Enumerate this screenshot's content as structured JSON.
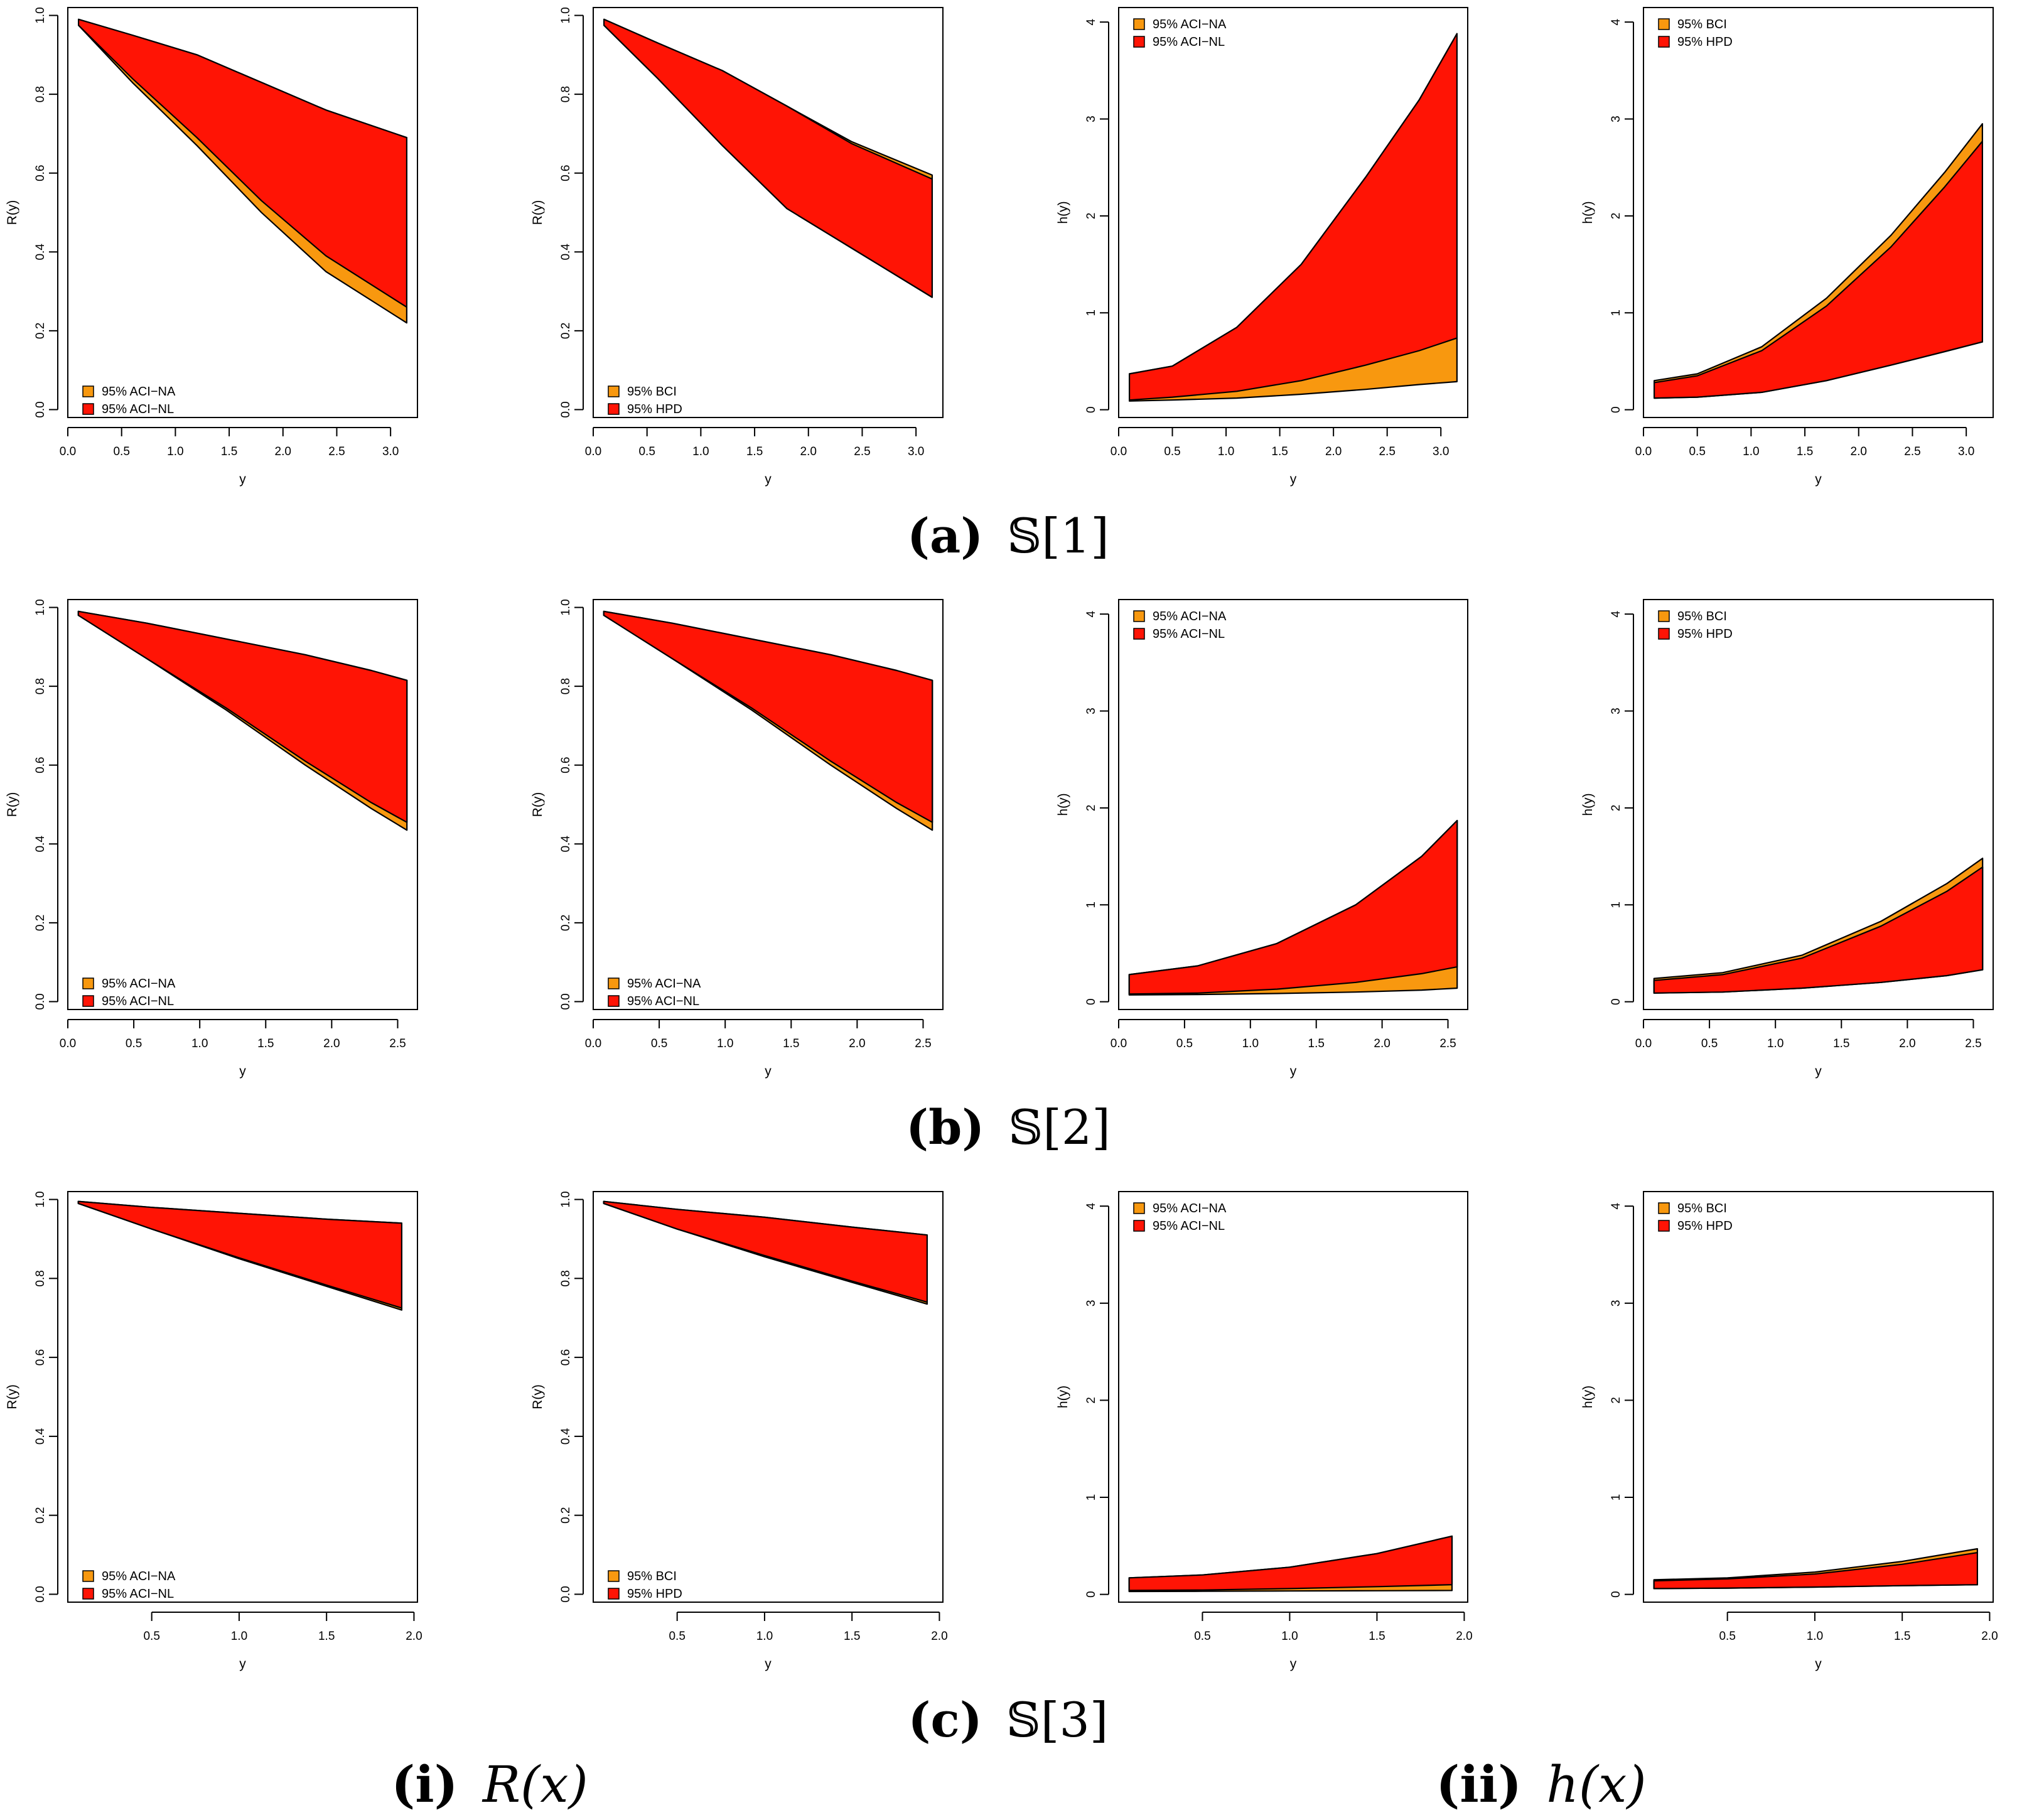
{
  "colors": {
    "orange": "#F8980F",
    "red": "#FF1405",
    "line": "#000000"
  },
  "row_captions": [
    {
      "letter": "(a)",
      "symbol": "𝕊[1]"
    },
    {
      "letter": "(b)",
      "symbol": "𝕊[2]"
    },
    {
      "letter": "(c)",
      "symbol": "𝕊[3]"
    }
  ],
  "column_captions": [
    {
      "letter": "(i)",
      "symbol": "R(x)"
    },
    {
      "letter": "(ii)",
      "symbol": "h(x)"
    }
  ],
  "chart_data": [
    {
      "id": "a1",
      "type": "area",
      "xlabel": "y",
      "ylabel": "R(y)",
      "xlim": [
        0,
        3.25
      ],
      "ylim": [
        -0.02,
        1.02
      ],
      "xticks": [
        0,
        0.5,
        1,
        1.5,
        2,
        2.5,
        3
      ],
      "yticks": [
        0,
        0.2,
        0.4,
        0.6,
        0.8,
        1
      ],
      "x": [
        0.1,
        0.6,
        1.2,
        1.8,
        2.4,
        3.15
      ],
      "legend": [
        "95% ACI−NA",
        "95% ACI−NL"
      ],
      "legend_position": "bottom-left",
      "series": [
        {
          "name": "95% ACI−NA",
          "upper": [
            0.99,
            0.95,
            0.9,
            0.83,
            0.76,
            0.69
          ],
          "lower": [
            0.975,
            0.83,
            0.67,
            0.5,
            0.35,
            0.22
          ]
        },
        {
          "name": "95% ACI−NL",
          "upper": [
            0.99,
            0.95,
            0.9,
            0.83,
            0.76,
            0.69
          ],
          "lower": [
            0.975,
            0.84,
            0.69,
            0.53,
            0.39,
            0.26
          ]
        }
      ]
    },
    {
      "id": "a2",
      "type": "area",
      "xlabel": "y",
      "ylabel": "R(y)",
      "xlim": [
        0,
        3.25
      ],
      "ylim": [
        -0.02,
        1.02
      ],
      "xticks": [
        0,
        0.5,
        1,
        1.5,
        2,
        2.5,
        3
      ],
      "yticks": [
        0,
        0.2,
        0.4,
        0.6,
        0.8,
        1
      ],
      "x": [
        0.1,
        0.6,
        1.2,
        1.8,
        2.4,
        3.15
      ],
      "legend": [
        "95% BCI",
        "95% HPD"
      ],
      "legend_position": "bottom-left",
      "series": [
        {
          "name": "95% BCI",
          "upper": [
            0.99,
            0.93,
            0.86,
            0.77,
            0.68,
            0.595
          ],
          "lower": [
            0.975,
            0.84,
            0.67,
            0.51,
            0.41,
            0.285
          ]
        },
        {
          "name": "95% HPD",
          "upper": [
            0.99,
            0.93,
            0.86,
            0.77,
            0.675,
            0.585
          ],
          "lower": [
            0.975,
            0.84,
            0.67,
            0.51,
            0.41,
            0.285
          ]
        }
      ]
    },
    {
      "id": "a3",
      "type": "area",
      "xlabel": "y",
      "ylabel": "h(y)",
      "xlim": [
        0,
        3.25
      ],
      "ylim": [
        -0.08,
        4.15
      ],
      "xticks": [
        0,
        0.5,
        1,
        1.5,
        2,
        2.5,
        3
      ],
      "yticks": [
        0,
        1,
        2,
        3,
        4
      ],
      "x": [
        0.1,
        0.5,
        1.1,
        1.7,
        2.3,
        2.8,
        3.15
      ],
      "legend": [
        "95% ACI−NA",
        "95% ACI−NL"
      ],
      "legend_position": "top-left",
      "series": [
        {
          "name": "95% ACI−NA",
          "upper": [
            0.37,
            0.45,
            0.85,
            1.5,
            2.4,
            3.2,
            3.88
          ],
          "lower": [
            0.09,
            0.1,
            0.12,
            0.16,
            0.21,
            0.26,
            0.29
          ]
        },
        {
          "name": "95% ACI−NL",
          "upper": [
            0.37,
            0.45,
            0.85,
            1.5,
            2.4,
            3.2,
            3.88
          ],
          "lower": [
            0.1,
            0.13,
            0.19,
            0.3,
            0.46,
            0.61,
            0.74
          ]
        }
      ]
    },
    {
      "id": "a4",
      "type": "area",
      "xlabel": "y",
      "ylabel": "h(y)",
      "xlim": [
        0,
        3.25
      ],
      "ylim": [
        -0.08,
        4.15
      ],
      "xticks": [
        0,
        0.5,
        1,
        1.5,
        2,
        2.5,
        3
      ],
      "yticks": [
        0,
        1,
        2,
        3,
        4
      ],
      "x": [
        0.1,
        0.5,
        1.1,
        1.7,
        2.3,
        2.8,
        3.15
      ],
      "legend": [
        "95% BCI",
        "95% HPD"
      ],
      "legend_position": "top-left",
      "series": [
        {
          "name": "95% BCI",
          "upper": [
            0.3,
            0.37,
            0.65,
            1.15,
            1.8,
            2.45,
            2.95
          ],
          "lower": [
            0.12,
            0.13,
            0.18,
            0.3,
            0.46,
            0.6,
            0.7
          ]
        },
        {
          "name": "95% HPD",
          "upper": [
            0.28,
            0.35,
            0.61,
            1.07,
            1.68,
            2.3,
            2.77
          ],
          "lower": [
            0.12,
            0.13,
            0.18,
            0.3,
            0.46,
            0.6,
            0.7
          ]
        }
      ]
    },
    {
      "id": "b1",
      "type": "area",
      "xlabel": "y",
      "ylabel": "R(y)",
      "xlim": [
        0,
        2.65
      ],
      "ylim": [
        -0.02,
        1.02
      ],
      "xticks": [
        0,
        0.5,
        1,
        1.5,
        2,
        2.5
      ],
      "yticks": [
        0,
        0.2,
        0.4,
        0.6,
        0.8,
        1
      ],
      "x": [
        0.08,
        0.6,
        1.2,
        1.8,
        2.3,
        2.57
      ],
      "legend": [
        "95% ACI−NA",
        "95% ACI−NL"
      ],
      "legend_position": "bottom-left",
      "series": [
        {
          "name": "95% ACI−NA",
          "upper": [
            0.99,
            0.96,
            0.92,
            0.88,
            0.84,
            0.815
          ],
          "lower": [
            0.98,
            0.87,
            0.74,
            0.6,
            0.49,
            0.435
          ]
        },
        {
          "name": "95% ACI−NL",
          "upper": [
            0.99,
            0.96,
            0.92,
            0.88,
            0.84,
            0.815
          ],
          "lower": [
            0.98,
            0.87,
            0.745,
            0.61,
            0.505,
            0.455
          ]
        }
      ]
    },
    {
      "id": "b2",
      "type": "area",
      "xlabel": "y",
      "ylabel": "R(y)",
      "xlim": [
        0,
        2.65
      ],
      "ylim": [
        -0.02,
        1.02
      ],
      "xticks": [
        0,
        0.5,
        1,
        1.5,
        2,
        2.5
      ],
      "yticks": [
        0,
        0.2,
        0.4,
        0.6,
        0.8,
        1
      ],
      "x": [
        0.08,
        0.6,
        1.2,
        1.8,
        2.3,
        2.57
      ],
      "legend": [
        "95% ACI−NA",
        "95% ACI−NL"
      ],
      "legend_position": "bottom-left",
      "series": [
        {
          "name": "95% ACI−NA",
          "upper": [
            0.99,
            0.96,
            0.92,
            0.88,
            0.84,
            0.815
          ],
          "lower": [
            0.98,
            0.87,
            0.74,
            0.6,
            0.49,
            0.435
          ]
        },
        {
          "name": "95% ACI−NL",
          "upper": [
            0.99,
            0.96,
            0.92,
            0.88,
            0.84,
            0.815
          ],
          "lower": [
            0.98,
            0.87,
            0.745,
            0.61,
            0.505,
            0.455
          ]
        }
      ]
    },
    {
      "id": "b3",
      "type": "area",
      "xlabel": "y",
      "ylabel": "h(y)",
      "xlim": [
        0,
        2.65
      ],
      "ylim": [
        -0.08,
        4.15
      ],
      "xticks": [
        0,
        0.5,
        1,
        1.5,
        2,
        2.5
      ],
      "yticks": [
        0,
        1,
        2,
        3,
        4
      ],
      "x": [
        0.08,
        0.6,
        1.2,
        1.8,
        2.3,
        2.57
      ],
      "legend": [
        "95% ACI−NA",
        "95% ACI−NL"
      ],
      "legend_position": "top-left",
      "series": [
        {
          "name": "95% ACI−NA",
          "upper": [
            0.28,
            0.37,
            0.6,
            1.0,
            1.5,
            1.87
          ],
          "lower": [
            0.07,
            0.075,
            0.085,
            0.1,
            0.12,
            0.14
          ]
        },
        {
          "name": "95% ACI−NL",
          "upper": [
            0.28,
            0.37,
            0.6,
            1.0,
            1.5,
            1.87
          ],
          "lower": [
            0.08,
            0.09,
            0.13,
            0.2,
            0.29,
            0.36
          ]
        }
      ]
    },
    {
      "id": "b4",
      "type": "area",
      "xlabel": "y",
      "ylabel": "h(y)",
      "xlim": [
        0,
        2.65
      ],
      "ylim": [
        -0.08,
        4.15
      ],
      "xticks": [
        0,
        0.5,
        1,
        1.5,
        2,
        2.5
      ],
      "yticks": [
        0,
        1,
        2,
        3,
        4
      ],
      "x": [
        0.08,
        0.6,
        1.2,
        1.8,
        2.3,
        2.57
      ],
      "legend": [
        "95% BCI",
        "95% HPD"
      ],
      "legend_position": "top-left",
      "series": [
        {
          "name": "95% BCI",
          "upper": [
            0.24,
            0.3,
            0.48,
            0.83,
            1.22,
            1.48
          ],
          "lower": [
            0.09,
            0.1,
            0.14,
            0.2,
            0.27,
            0.33
          ]
        },
        {
          "name": "95% HPD",
          "upper": [
            0.22,
            0.28,
            0.45,
            0.78,
            1.14,
            1.39
          ],
          "lower": [
            0.09,
            0.1,
            0.14,
            0.2,
            0.27,
            0.33
          ]
        }
      ]
    },
    {
      "id": "c1",
      "type": "area",
      "xlabel": "y",
      "ylabel": "R(y)",
      "xlim": [
        0.02,
        2.02
      ],
      "ylim": [
        -0.02,
        1.02
      ],
      "xticks": [
        0.5,
        1,
        1.5,
        2
      ],
      "yticks": [
        0,
        0.2,
        0.4,
        0.6,
        0.8,
        1
      ],
      "x": [
        0.08,
        0.5,
        1.0,
        1.5,
        1.93
      ],
      "legend": [
        "95% ACI−NA",
        "95% ACI−NL"
      ],
      "legend_position": "bottom-left",
      "series": [
        {
          "name": "95% ACI−NA",
          "upper": [
            0.995,
            0.98,
            0.965,
            0.95,
            0.94
          ],
          "lower": [
            0.99,
            0.925,
            0.85,
            0.78,
            0.72
          ]
        },
        {
          "name": "95% ACI−NL",
          "upper": [
            0.995,
            0.98,
            0.965,
            0.95,
            0.94
          ],
          "lower": [
            0.99,
            0.925,
            0.852,
            0.783,
            0.725
          ]
        }
      ]
    },
    {
      "id": "c2",
      "type": "area",
      "xlabel": "y",
      "ylabel": "R(y)",
      "xlim": [
        0.02,
        2.02
      ],
      "ylim": [
        -0.02,
        1.02
      ],
      "xticks": [
        0.5,
        1,
        1.5,
        2
      ],
      "yticks": [
        0,
        0.2,
        0.4,
        0.6,
        0.8,
        1
      ],
      "x": [
        0.08,
        0.5,
        1.0,
        1.5,
        1.93
      ],
      "legend": [
        "95% BCI",
        "95% HPD"
      ],
      "legend_position": "bottom-left",
      "series": [
        {
          "name": "95% BCI",
          "upper": [
            0.995,
            0.975,
            0.955,
            0.93,
            0.91
          ],
          "lower": [
            0.99,
            0.925,
            0.855,
            0.79,
            0.735
          ]
        },
        {
          "name": "95% HPD",
          "upper": [
            0.995,
            0.975,
            0.955,
            0.93,
            0.91
          ],
          "lower": [
            0.99,
            0.925,
            0.858,
            0.793,
            0.74
          ]
        }
      ]
    },
    {
      "id": "c3",
      "type": "area",
      "xlabel": "y",
      "ylabel": "h(y)",
      "xlim": [
        0.02,
        2.02
      ],
      "ylim": [
        -0.08,
        4.15
      ],
      "xticks": [
        0.5,
        1,
        1.5,
        2
      ],
      "yticks": [
        0,
        1,
        2,
        3,
        4
      ],
      "x": [
        0.08,
        0.5,
        1.0,
        1.5,
        1.93
      ],
      "legend": [
        "95% ACI−NA",
        "95% ACI−NL"
      ],
      "legend_position": "top-left",
      "series": [
        {
          "name": "95% ACI−NA",
          "upper": [
            0.17,
            0.2,
            0.28,
            0.42,
            0.6
          ],
          "lower": [
            0.03,
            0.032,
            0.035,
            0.038,
            0.04
          ]
        },
        {
          "name": "95% ACI−NL",
          "upper": [
            0.17,
            0.2,
            0.28,
            0.42,
            0.6
          ],
          "lower": [
            0.04,
            0.045,
            0.06,
            0.08,
            0.1
          ]
        }
      ]
    },
    {
      "id": "c4",
      "type": "area",
      "xlabel": "y",
      "ylabel": "h(y)",
      "xlim": [
        0.02,
        2.02
      ],
      "ylim": [
        -0.08,
        4.15
      ],
      "xticks": [
        0.5,
        1,
        1.5,
        2
      ],
      "yticks": [
        0,
        1,
        2,
        3,
        4
      ],
      "x": [
        0.08,
        0.5,
        1.0,
        1.5,
        1.93
      ],
      "legend": [
        "95% BCI",
        "95% HPD"
      ],
      "legend_position": "top-left",
      "series": [
        {
          "name": "95% BCI",
          "upper": [
            0.15,
            0.17,
            0.23,
            0.34,
            0.47
          ],
          "lower": [
            0.06,
            0.065,
            0.075,
            0.09,
            0.1
          ]
        },
        {
          "name": "95% HPD",
          "upper": [
            0.14,
            0.16,
            0.21,
            0.31,
            0.43
          ],
          "lower": [
            0.06,
            0.065,
            0.075,
            0.09,
            0.1
          ]
        }
      ]
    }
  ]
}
